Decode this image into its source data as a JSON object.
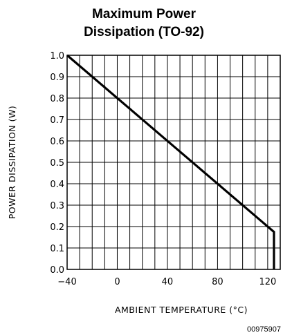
{
  "chart_data": {
    "type": "line",
    "title_lines": [
      "Maximum Power",
      "Dissipation (TO-92)"
    ],
    "xlabel": "AMBIENT TEMPERATURE (°C)",
    "ylabel": "POWER DISSIPATION (W)",
    "xlim": [
      -40,
      130
    ],
    "ylim": [
      0,
      1.0
    ],
    "x_ticks": [
      -40,
      0,
      40,
      80,
      120
    ],
    "x_tick_labels": [
      "−40",
      "0",
      "40",
      "80",
      "120"
    ],
    "x_minor_step": 10,
    "y_ticks": [
      0,
      0.1,
      0.2,
      0.3,
      0.4,
      0.5,
      0.6,
      0.7,
      0.8,
      0.9,
      1.0
    ],
    "y_tick_labels": [
      "0.0",
      "0.1",
      "0.2",
      "0.3",
      "0.4",
      "0.5",
      "0.6",
      "0.7",
      "0.8",
      "0.9",
      "1.0"
    ],
    "grid": true,
    "series": [
      {
        "x": [
          -40,
          125,
          125
        ],
        "y": [
          1.0,
          0.175,
          0
        ]
      }
    ],
    "code": "00975907"
  }
}
